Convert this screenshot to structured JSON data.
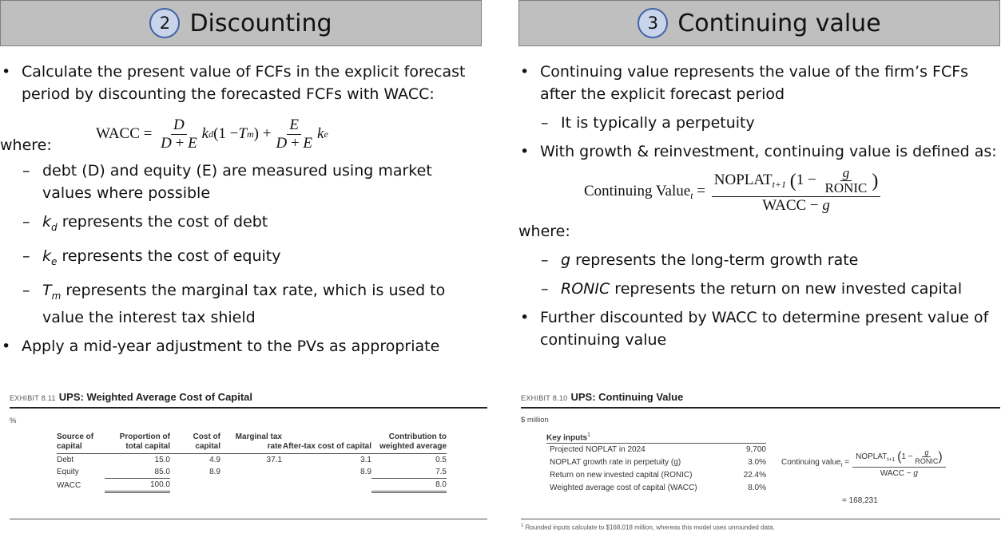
{
  "left": {
    "number": "2",
    "title": "Discounting",
    "bullet1": "Calculate the present value of FCFs in the explicit forecast period by discounting the forecasted FCFs with WACC:",
    "where": "where:",
    "sub1": "debt (D) and equity (E) are measured using market values where possible",
    "sub2": "represents the cost of debt",
    "sub3": "represents the cost of equity",
    "sub4": "represents the marginal tax rate, which is used to value the interest tax shield",
    "bullet2": "Apply a mid-year adjustment to the PVs as appropriate",
    "exhibit": {
      "label": "EXHIBIT 8.11",
      "title": "UPS: Weighted Average Cost of Capital",
      "unit": "%",
      "headers": [
        "Source of capital",
        "Proportion of total capital",
        "Cost of capital",
        "Marginal tax rate",
        "After-tax cost of capital",
        "Contribution to weighted average"
      ],
      "rows": [
        [
          "Debt",
          "15.0",
          "4.9",
          "37.1",
          "3.1",
          "0.5"
        ],
        [
          "Equity",
          "85.0",
          "8.9",
          "",
          "8.9",
          "7.5"
        ],
        [
          "WACC",
          "100.0",
          "",
          "",
          "",
          "8.0"
        ]
      ]
    }
  },
  "right": {
    "number": "3",
    "title": "Continuing value",
    "bullet1": "Continuing value represents the value of the firm’s FCFs after the explicit forecast period",
    "sub_perp": "It is typically a perpetuity",
    "bullet2": "With growth & reinvestment, continuing value is defined as:",
    "where": "where:",
    "sub_g": "represents the long-term growth rate",
    "sub_ronic": "represents the return on new invested capital",
    "bullet3": "Further discounted by WACC to determine present value of continuing value",
    "exhibit": {
      "label": "EXHIBIT 8.10",
      "title": "UPS: Continuing Value",
      "unit": "$ million",
      "key_inputs": "Key inputs",
      "inputs": [
        {
          "label": "Projected NOPLAT in 2024",
          "value": "9,700"
        },
        {
          "label": "NOPLAT growth rate in perpetuity (g)",
          "value": "3.0%"
        },
        {
          "label": "Return on new invested capital (RONIC)",
          "value": "22.4%"
        },
        {
          "label": "Weighted average cost of capital (WACC)",
          "value": "8.0%"
        }
      ],
      "result": "= 168,231",
      "footnote": "Rounded inputs calculate to $168,018 million, whereas this model uses unrounded data."
    }
  }
}
